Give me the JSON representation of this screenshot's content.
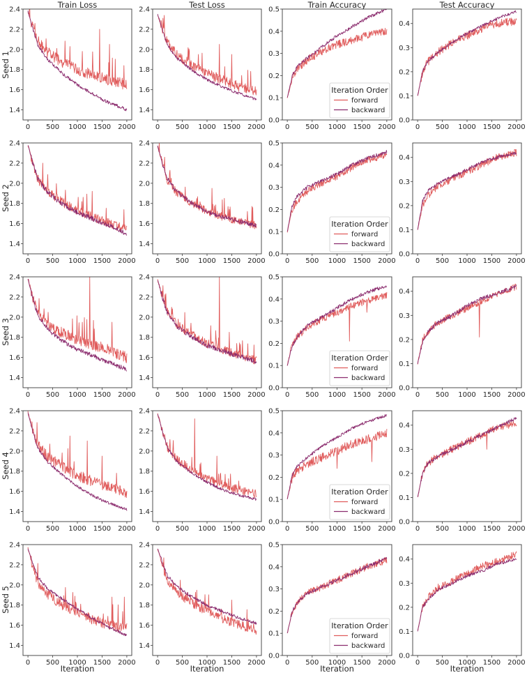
{
  "chart_data": {
    "type": "line",
    "figure_type": "grid of line charts",
    "column_titles": [
      "Train Loss",
      "Test Loss",
      "Train Accuracy",
      "Test Accuracy"
    ],
    "row_labels": [
      "Seed 1",
      "Seed 2",
      "Seed 3",
      "Seed 4",
      "Seed 5"
    ],
    "xlabel": "Iteration",
    "x_ticks": [
      0,
      500,
      1000,
      1500,
      2000
    ],
    "x_ticks_text": [
      "0",
      "500",
      "1000",
      "1500",
      "2000"
    ],
    "xlim": [
      -100,
      2100
    ],
    "loss_ylim": [
      1.3,
      2.4
    ],
    "loss_y_ticks": [
      1.4,
      1.6,
      1.8,
      2.0,
      2.2,
      2.4
    ],
    "loss_y_ticks_text": [
      "1.4",
      "1.6",
      "1.8",
      "2.0",
      "2.2",
      "2.4"
    ],
    "train_acc_ylim": [
      0.0,
      0.5
    ],
    "train_acc_y_ticks": [
      0.0,
      0.1,
      0.2,
      0.3,
      0.4,
      0.5
    ],
    "train_acc_y_ticks_text": [
      "0.0",
      "0.1",
      "0.2",
      "0.3",
      "0.4",
      "0.5"
    ],
    "test_acc_ylim": [
      0.0,
      0.46
    ],
    "test_acc_y_ticks": [
      0.0,
      0.1,
      0.2,
      0.3,
      0.4
    ],
    "test_acc_y_ticks_text": [
      "0.0",
      "0.1",
      "0.2",
      "0.3",
      "0.4"
    ],
    "legend": {
      "title": "Iteration Order",
      "placement": "lower-right",
      "panel": "Train Accuracy",
      "entries": [
        "forward",
        "backward"
      ]
    },
    "colors": {
      "forward": "#e05c5c",
      "backward": "#8b2c6e"
    },
    "key_x": [
      0,
      100,
      200,
      400,
      700,
      1000,
      1300,
      1600,
      2000
    ],
    "series": [
      {
        "seed": "Seed 1",
        "panel": "Train Loss",
        "order": "forward",
        "y": [
          2.38,
          2.22,
          2.08,
          1.97,
          1.87,
          1.8,
          1.75,
          1.7,
          1.65
        ],
        "noise": 0.055,
        "spikes": [
          [
            1450,
            2.2
          ],
          [
            1650,
            2.05
          ],
          [
            1100,
            1.98
          ]
        ]
      },
      {
        "seed": "Seed 1",
        "panel": "Train Loss",
        "order": "backward",
        "y": [
          2.38,
          2.2,
          2.04,
          1.9,
          1.76,
          1.65,
          1.56,
          1.48,
          1.4
        ],
        "noise": 0.016,
        "spikes": []
      },
      {
        "seed": "Seed 1",
        "panel": "Test Loss",
        "order": "forward",
        "y": [
          2.35,
          2.2,
          2.06,
          1.94,
          1.84,
          1.76,
          1.7,
          1.64,
          1.58
        ],
        "noise": 0.05,
        "spikes": [
          [
            1250,
            2.05
          ],
          [
            1500,
            1.95
          ]
        ]
      },
      {
        "seed": "Seed 1",
        "panel": "Test Loss",
        "order": "backward",
        "y": [
          2.35,
          2.19,
          2.04,
          1.91,
          1.79,
          1.7,
          1.63,
          1.57,
          1.5
        ],
        "noise": 0.014,
        "spikes": []
      },
      {
        "seed": "Seed 1",
        "panel": "Train Accuracy",
        "order": "forward",
        "y": [
          0.1,
          0.19,
          0.23,
          0.27,
          0.31,
          0.34,
          0.36,
          0.38,
          0.4
        ],
        "noise": 0.018,
        "spikes": []
      },
      {
        "seed": "Seed 1",
        "panel": "Train Accuracy",
        "order": "backward",
        "y": [
          0.1,
          0.2,
          0.24,
          0.28,
          0.33,
          0.38,
          0.42,
          0.46,
          0.5
        ],
        "noise": 0.007,
        "spikes": []
      },
      {
        "seed": "Seed 1",
        "panel": "Test Accuracy",
        "order": "forward",
        "y": [
          0.1,
          0.2,
          0.24,
          0.28,
          0.32,
          0.35,
          0.38,
          0.4,
          0.41
        ],
        "noise": 0.017,
        "spikes": []
      },
      {
        "seed": "Seed 1",
        "panel": "Test Accuracy",
        "order": "backward",
        "y": [
          0.1,
          0.2,
          0.24,
          0.28,
          0.32,
          0.36,
          0.39,
          0.42,
          0.45
        ],
        "noise": 0.006,
        "spikes": []
      },
      {
        "seed": "Seed 2",
        "panel": "Train Loss",
        "order": "forward",
        "y": [
          2.38,
          2.2,
          2.04,
          1.92,
          1.81,
          1.73,
          1.67,
          1.61,
          1.54
        ],
        "noise": 0.045,
        "spikes": [
          [
            300,
            2.2
          ],
          [
            1300,
            1.92
          ]
        ]
      },
      {
        "seed": "Seed 2",
        "panel": "Train Loss",
        "order": "backward",
        "y": [
          2.38,
          2.2,
          2.04,
          1.91,
          1.79,
          1.71,
          1.65,
          1.59,
          1.5
        ],
        "noise": 0.025,
        "spikes": []
      },
      {
        "seed": "Seed 2",
        "panel": "Test Loss",
        "order": "forward",
        "y": [
          2.37,
          2.19,
          2.03,
          1.9,
          1.8,
          1.72,
          1.67,
          1.63,
          1.58
        ],
        "noise": 0.04,
        "spikes": [
          [
            1100,
            1.95
          ],
          [
            1350,
            1.85
          ]
        ]
      },
      {
        "seed": "Seed 2",
        "panel": "Test Loss",
        "order": "backward",
        "y": [
          2.37,
          2.19,
          2.04,
          1.91,
          1.8,
          1.72,
          1.67,
          1.63,
          1.58
        ],
        "noise": 0.022,
        "spikes": []
      },
      {
        "seed": "Seed 2",
        "panel": "Train Accuracy",
        "order": "forward",
        "y": [
          0.1,
          0.2,
          0.24,
          0.28,
          0.32,
          0.35,
          0.39,
          0.42,
          0.45
        ],
        "noise": 0.016,
        "spikes": []
      },
      {
        "seed": "Seed 2",
        "panel": "Train Accuracy",
        "order": "backward",
        "y": [
          0.1,
          0.22,
          0.26,
          0.3,
          0.33,
          0.36,
          0.4,
          0.43,
          0.46
        ],
        "noise": 0.008,
        "spikes": []
      },
      {
        "seed": "Seed 2",
        "panel": "Test Accuracy",
        "order": "forward",
        "y": [
          0.1,
          0.2,
          0.24,
          0.28,
          0.31,
          0.34,
          0.37,
          0.4,
          0.42
        ],
        "noise": 0.015,
        "spikes": []
      },
      {
        "seed": "Seed 2",
        "panel": "Test Accuracy",
        "order": "backward",
        "y": [
          0.1,
          0.22,
          0.26,
          0.29,
          0.32,
          0.35,
          0.38,
          0.4,
          0.42
        ],
        "noise": 0.007,
        "spikes": []
      },
      {
        "seed": "Seed 3",
        "panel": "Train Loss",
        "order": "forward",
        "y": [
          2.38,
          2.2,
          2.05,
          1.93,
          1.84,
          1.78,
          1.73,
          1.68,
          1.6
        ],
        "noise": 0.055,
        "spikes": [
          [
            1250,
            2.4
          ],
          [
            1100,
            1.95
          ],
          [
            1700,
            1.95
          ]
        ]
      },
      {
        "seed": "Seed 3",
        "panel": "Train Loss",
        "order": "backward",
        "y": [
          2.38,
          2.18,
          2.02,
          1.88,
          1.76,
          1.68,
          1.62,
          1.56,
          1.48
        ],
        "noise": 0.022,
        "spikes": []
      },
      {
        "seed": "Seed 3",
        "panel": "Test Loss",
        "order": "forward",
        "y": [
          2.37,
          2.2,
          2.05,
          1.92,
          1.82,
          1.74,
          1.68,
          1.63,
          1.57
        ],
        "noise": 0.045,
        "spikes": [
          [
            1250,
            2.4
          ],
          [
            1450,
            1.85
          ]
        ]
      },
      {
        "seed": "Seed 3",
        "panel": "Test Loss",
        "order": "backward",
        "y": [
          2.37,
          2.19,
          2.04,
          1.91,
          1.8,
          1.72,
          1.67,
          1.62,
          1.56
        ],
        "noise": 0.024,
        "spikes": []
      },
      {
        "seed": "Seed 3",
        "panel": "Train Accuracy",
        "order": "forward",
        "y": [
          0.1,
          0.2,
          0.23,
          0.27,
          0.31,
          0.34,
          0.37,
          0.39,
          0.42
        ],
        "noise": 0.016,
        "spikes": [
          [
            1250,
            0.21
          ],
          [
            1600,
            0.34
          ]
        ]
      },
      {
        "seed": "Seed 3",
        "panel": "Train Accuracy",
        "order": "backward",
        "y": [
          0.1,
          0.19,
          0.23,
          0.28,
          0.32,
          0.36,
          0.4,
          0.43,
          0.46
        ],
        "noise": 0.008,
        "spikes": []
      },
      {
        "seed": "Seed 3",
        "panel": "Test Accuracy",
        "order": "forward",
        "y": [
          0.1,
          0.2,
          0.23,
          0.27,
          0.3,
          0.33,
          0.36,
          0.39,
          0.42
        ],
        "noise": 0.014,
        "spikes": [
          [
            1250,
            0.21
          ]
        ]
      },
      {
        "seed": "Seed 3",
        "panel": "Test Accuracy",
        "order": "backward",
        "y": [
          0.1,
          0.19,
          0.23,
          0.27,
          0.3,
          0.34,
          0.37,
          0.39,
          0.42
        ],
        "noise": 0.008,
        "spikes": []
      },
      {
        "seed": "Seed 4",
        "panel": "Train Loss",
        "order": "forward",
        "y": [
          2.38,
          2.21,
          2.06,
          1.94,
          1.84,
          1.76,
          1.7,
          1.65,
          1.58
        ],
        "noise": 0.055,
        "spikes": [
          [
            850,
            2.15
          ],
          [
            1200,
            2.1
          ],
          [
            1500,
            1.95
          ]
        ]
      },
      {
        "seed": "Seed 4",
        "panel": "Train Loss",
        "order": "backward",
        "y": [
          2.38,
          2.19,
          2.03,
          1.89,
          1.76,
          1.65,
          1.56,
          1.49,
          1.42
        ],
        "noise": 0.014,
        "spikes": []
      },
      {
        "seed": "Seed 4",
        "panel": "Test Loss",
        "order": "forward",
        "y": [
          2.37,
          2.2,
          2.04,
          1.91,
          1.81,
          1.73,
          1.67,
          1.62,
          1.57
        ],
        "noise": 0.045,
        "spikes": [
          [
            750,
            2.32
          ],
          [
            1200,
            1.95
          ]
        ]
      },
      {
        "seed": "Seed 4",
        "panel": "Test Loss",
        "order": "backward",
        "y": [
          2.37,
          2.19,
          2.03,
          1.89,
          1.78,
          1.69,
          1.62,
          1.57,
          1.52
        ],
        "noise": 0.014,
        "spikes": []
      },
      {
        "seed": "Seed 4",
        "panel": "Train Accuracy",
        "order": "forward",
        "y": [
          0.1,
          0.2,
          0.23,
          0.26,
          0.29,
          0.32,
          0.35,
          0.37,
          0.4
        ],
        "noise": 0.02,
        "spikes": [
          [
            1000,
            0.24
          ],
          [
            1700,
            0.27
          ]
        ]
      },
      {
        "seed": "Seed 4",
        "panel": "Train Accuracy",
        "order": "backward",
        "y": [
          0.1,
          0.21,
          0.25,
          0.29,
          0.34,
          0.38,
          0.42,
          0.45,
          0.48
        ],
        "noise": 0.006,
        "spikes": []
      },
      {
        "seed": "Seed 4",
        "panel": "Test Accuracy",
        "order": "forward",
        "y": [
          0.1,
          0.2,
          0.24,
          0.27,
          0.3,
          0.33,
          0.36,
          0.39,
          0.41
        ],
        "noise": 0.016,
        "spikes": [
          [
            1400,
            0.3
          ]
        ]
      },
      {
        "seed": "Seed 4",
        "panel": "Test Accuracy",
        "order": "backward",
        "y": [
          0.1,
          0.2,
          0.24,
          0.27,
          0.3,
          0.33,
          0.36,
          0.39,
          0.43
        ],
        "noise": 0.007,
        "spikes": []
      },
      {
        "seed": "Seed 5",
        "panel": "Train Loss",
        "order": "forward",
        "y": [
          2.36,
          2.18,
          2.02,
          1.9,
          1.8,
          1.72,
          1.66,
          1.61,
          1.57
        ],
        "noise": 0.05,
        "spikes": [
          [
            1700,
            1.88
          ],
          [
            1950,
            1.88
          ]
        ]
      },
      {
        "seed": "Seed 5",
        "panel": "Train Loss",
        "order": "backward",
        "y": [
          2.36,
          2.21,
          2.08,
          1.96,
          1.86,
          1.76,
          1.67,
          1.59,
          1.5
        ],
        "noise": 0.014,
        "spikes": []
      },
      {
        "seed": "Seed 5",
        "panel": "Test Loss",
        "order": "forward",
        "y": [
          2.36,
          2.19,
          2.04,
          1.92,
          1.82,
          1.74,
          1.67,
          1.61,
          1.55
        ],
        "noise": 0.045,
        "spikes": [
          [
            1500,
            1.85
          ]
        ]
      },
      {
        "seed": "Seed 5",
        "panel": "Test Loss",
        "order": "backward",
        "y": [
          2.36,
          2.22,
          2.09,
          1.98,
          1.88,
          1.8,
          1.74,
          1.68,
          1.62
        ],
        "noise": 0.016,
        "spikes": []
      },
      {
        "seed": "Seed 5",
        "panel": "Train Accuracy",
        "order": "forward",
        "y": [
          0.1,
          0.2,
          0.24,
          0.28,
          0.31,
          0.34,
          0.37,
          0.4,
          0.43
        ],
        "noise": 0.016,
        "spikes": []
      },
      {
        "seed": "Seed 5",
        "panel": "Train Accuracy",
        "order": "backward",
        "y": [
          0.1,
          0.2,
          0.24,
          0.28,
          0.31,
          0.34,
          0.37,
          0.4,
          0.44
        ],
        "noise": 0.008,
        "spikes": []
      },
      {
        "seed": "Seed 5",
        "panel": "Test Accuracy",
        "order": "forward",
        "y": [
          0.1,
          0.2,
          0.24,
          0.28,
          0.31,
          0.34,
          0.37,
          0.39,
          0.42
        ],
        "noise": 0.015,
        "spikes": []
      },
      {
        "seed": "Seed 5",
        "panel": "Test Accuracy",
        "order": "backward",
        "y": [
          0.1,
          0.2,
          0.23,
          0.27,
          0.3,
          0.33,
          0.35,
          0.38,
          0.4
        ],
        "noise": 0.007,
        "spikes": []
      }
    ]
  }
}
